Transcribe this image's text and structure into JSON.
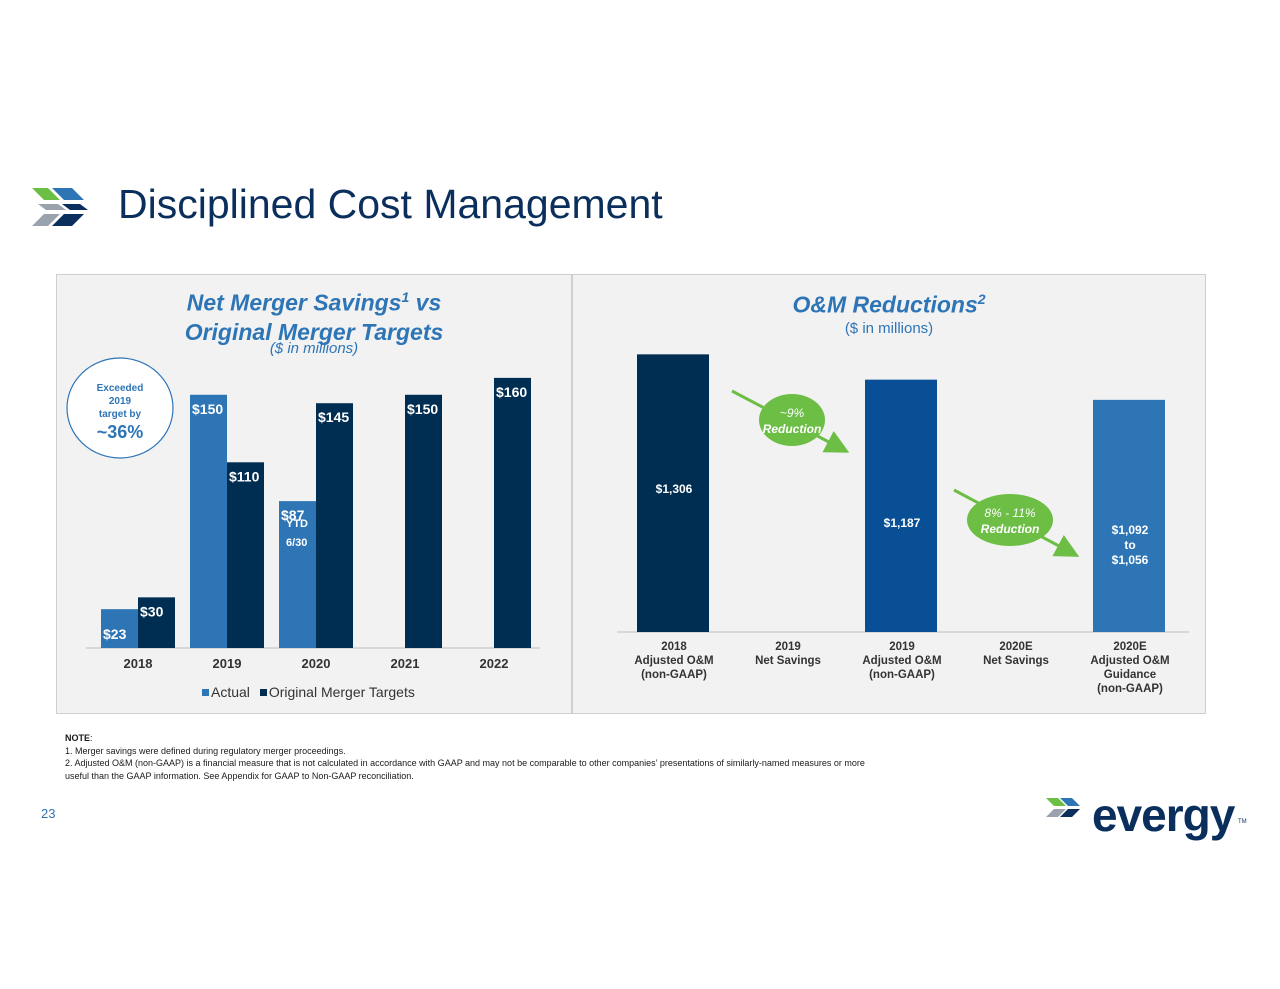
{
  "slide": {
    "title": "Disciplined Cost Management",
    "page_number": "23",
    "brand": "evergy",
    "brand_tm": "TM",
    "colors": {
      "navy": "#0a2f5c",
      "blue": "#2e75b6",
      "dark_navy": "#002d52",
      "mid_blue": "#084f96",
      "green": "#6cbe45"
    }
  },
  "notes": {
    "heading": "NOTE",
    "heading_suffix": ":",
    "lines": [
      "1. Merger savings were defined during regulatory merger proceedings.",
      "2. Adjusted O&M  (non-GAAP) is a financial measure that is not calculated in accordance with GAAP and may not be comparable to other companies’ presentations of similarly-named measures or more",
      "useful than the GAAP information. See Appendix for GAAP to Non-GAAP reconciliation."
    ]
  },
  "chart_data": [
    {
      "type": "bar",
      "title_line1": "Net Merger Savings",
      "title_sup": "1",
      "title_line1_suffix": " vs",
      "title_line2": "Original Merger Targets",
      "subtitle": "($ in millions)",
      "categories": [
        "2018",
        "2019",
        "2020",
        "2021",
        "2022"
      ],
      "ylim": [
        0,
        170
      ],
      "series": [
        {
          "name": "Actual",
          "color": "#2e75b6",
          "values": [
            23,
            150,
            87,
            null,
            null
          ],
          "labels": [
            "$23",
            "$150",
            "$87",
            "",
            ""
          ]
        },
        {
          "name": "Original Merger Targets",
          "color": "#002d52",
          "values": [
            30,
            110,
            145,
            150,
            160
          ],
          "labels": [
            "$30",
            "$110",
            "$145",
            "$150",
            "$160"
          ]
        }
      ],
      "annotations": {
        "ytd": [
          "YTD",
          "6/30"
        ],
        "callout": [
          "Exceeded",
          "2019",
          "target by"
        ],
        "callout_value": "~36%"
      },
      "legend": [
        "Actual",
        "Original Merger Targets"
      ]
    },
    {
      "type": "bar",
      "title": "O&M Reductions",
      "title_sup": "2",
      "subtitle": "($ in millions)",
      "ylim": [
        0,
        1350
      ],
      "categories": [
        [
          "2018",
          "Adjusted  O&M",
          "(non-GAAP)"
        ],
        [
          "2019",
          "Net Savings"
        ],
        [
          "2019",
          "Adjusted O&M",
          "(non-GAAP)"
        ],
        [
          "2020E",
          "Net Savings"
        ],
        [
          "2020E",
          "Adjusted O&M",
          "Guidance",
          "(non-GAAP)"
        ]
      ],
      "values": [
        1306,
        null,
        1187,
        null,
        1092
      ],
      "range_low": [
        null,
        null,
        null,
        null,
        1056
      ],
      "bar_colors": [
        "#002d52",
        null,
        "#084f96",
        null,
        "#2e75b6"
      ],
      "labels": [
        [
          "$1,306"
        ],
        [],
        [
          "$1,187"
        ],
        [],
        [
          "$1,092",
          "to",
          "$1,056"
        ]
      ],
      "reductions": [
        [
          "~9%",
          "Reduction"
        ],
        [
          "8% - 11%",
          "Reduction"
        ]
      ]
    }
  ]
}
